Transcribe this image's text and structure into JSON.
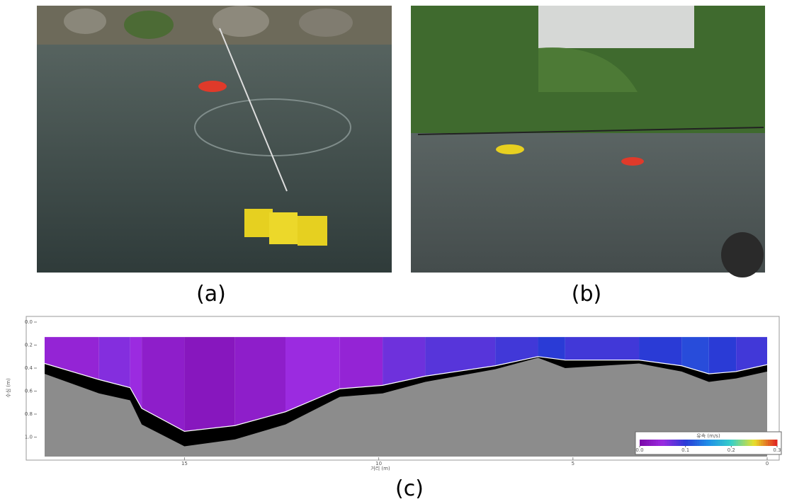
{
  "panels": {
    "a": "(a)",
    "b": "(b)",
    "c": "(c)"
  },
  "chart_data": {
    "type": "profile",
    "xlabel": "거리 (m)",
    "ylabel": "수심 (m)",
    "xlim": [
      18.6,
      0
    ],
    "xticks": [
      15,
      10,
      5,
      0
    ],
    "ylim": [
      0,
      1.2
    ],
    "yticks": [
      {
        "value": 0,
        "label": "0.0"
      },
      0.2,
      0.4,
      0.6,
      0.8,
      {
        "value": 1,
        "label": "1.0"
      }
    ],
    "x": [
      18.6,
      17.2,
      16.4,
      16.1,
      15,
      13.7,
      12.4,
      11,
      9.9,
      8.8,
      7,
      5.9,
      5.2,
      3.3,
      2.2,
      1.5,
      0.8,
      0
    ],
    "series": [
      {
        "name": "bed",
        "color": "#8c8c8c",
        "values": [
          0.45,
          0.62,
          0.68,
          0.89,
          1.08,
          1.02,
          0.89,
          0.65,
          0.62,
          0.52,
          0.41,
          0.31,
          0.4,
          0.36,
          0.43,
          0.52,
          0.49,
          0.43
        ]
      },
      {
        "name": "measured",
        "color": "#000000",
        "values": [
          0.36,
          0.5,
          0.57,
          0.75,
          0.95,
          0.9,
          0.78,
          0.58,
          0.55,
          0.47,
          0.38,
          0.3,
          0.33,
          0.33,
          0.38,
          0.45,
          0.43,
          0.37
        ]
      }
    ],
    "velocity": {
      "top": 0.13,
      "bins": [
        18.6,
        17.2,
        16.4,
        16.1,
        15,
        13.7,
        12.4,
        11,
        9.9,
        8.8,
        7,
        5.9,
        5.2,
        3.3,
        2.2,
        1.5,
        0.8,
        0
      ],
      "values": [
        0.04,
        0.06,
        0.05,
        0.03,
        0.02,
        0.03,
        0.05,
        0.04,
        0.07,
        0.08,
        0.09,
        0.1,
        0.09,
        0.1,
        0.11,
        0.1,
        0.09
      ]
    },
    "colorbar": {
      "title": "유속 (m/s)",
      "clim": [
        0,
        0.3
      ],
      "ticks": [
        {
          "value": 0,
          "label": "0.0"
        },
        0.1,
        0.2,
        0.3
      ],
      "colormap": [
        "#7a0aa8",
        "#9b2be0",
        "#2a3bd6",
        "#1f8fe8",
        "#37d0c8",
        "#e8e02a",
        "#e02020"
      ]
    }
  }
}
